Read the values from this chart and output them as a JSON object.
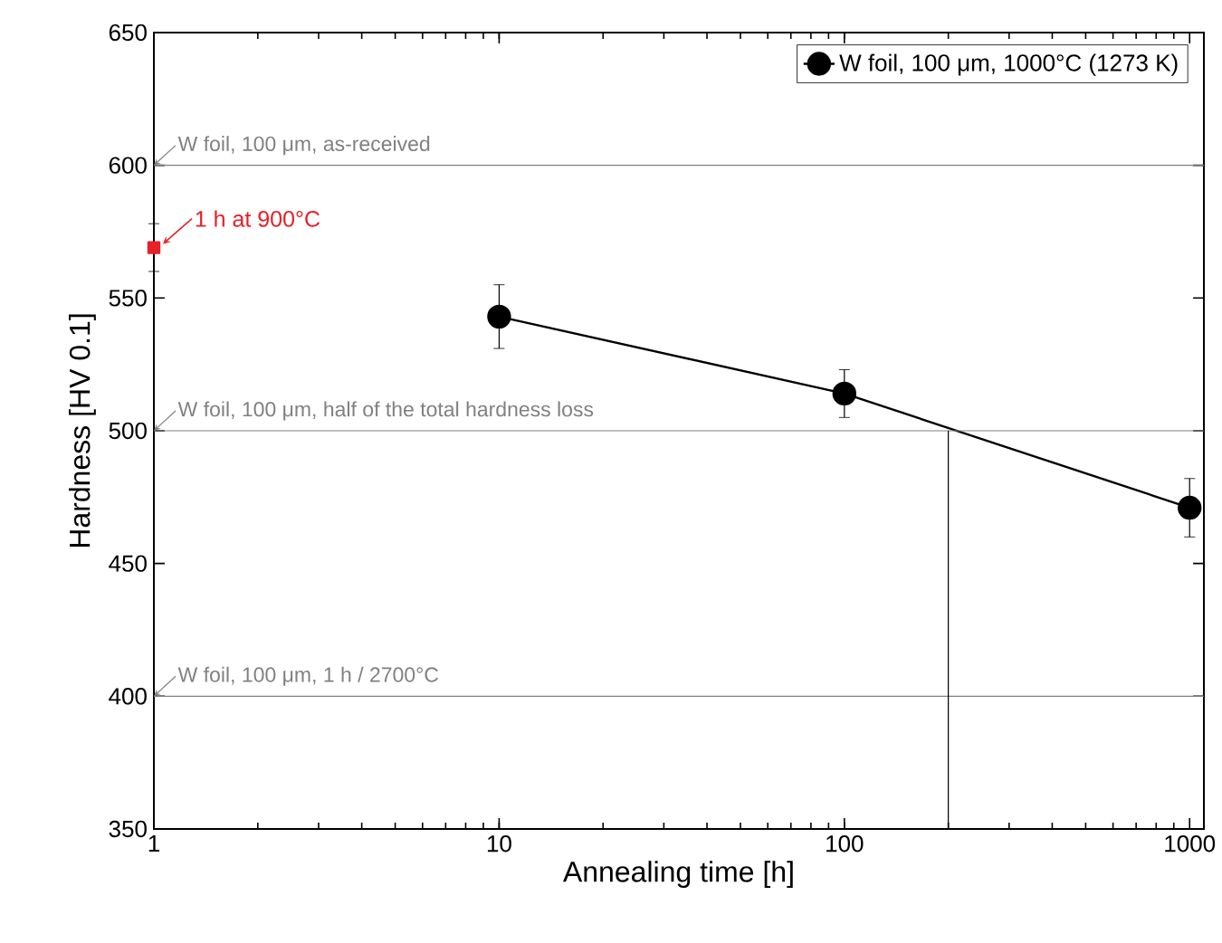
{
  "chart_data": {
    "type": "line",
    "xlabel": "Annealing time [h]",
    "ylabel": "Hardness [HV 0.1]",
    "log": "x",
    "xlim": [
      1,
      1100
    ],
    "xticks": [
      1,
      10,
      100,
      1000
    ],
    "ylim": [
      350,
      650
    ],
    "yticks": [
      350,
      400,
      450,
      500,
      550,
      600,
      650
    ],
    "grid": false,
    "legend": "top right",
    "marker": "circle",
    "line_style": "solid",
    "series": [
      {
        "name": "W foil, 100 μm, 1000°C (1273 K)",
        "color": "#000000",
        "x": [
          10,
          100,
          1000
        ],
        "values": [
          543,
          514,
          471
        ],
        "errors": [
          12,
          9,
          11
        ]
      },
      {
        "type": "scatter",
        "marker": "square",
        "color": "#e8202a",
        "x": [
          1
        ],
        "values": [
          569
        ],
        "errors": [
          9
        ]
      }
    ],
    "ref_lines": [
      {
        "axis": "y",
        "value": 600,
        "label": "W foil, 100 μm, as-received",
        "color": "#808080"
      },
      {
        "axis": "y",
        "value": 500,
        "label": "W foil, 100 μm, half of the total hardness loss",
        "color": "#808080"
      },
      {
        "axis": "y",
        "value": 400,
        "label": "W foil, 100 μm, 1 h / 2700°C",
        "color": "#808080"
      },
      {
        "axis": "x",
        "value": 200,
        "color": "#000000"
      }
    ],
    "annotations": [
      {
        "text": "1 h at 900°C",
        "x": 1,
        "y": 569
      }
    ]
  }
}
